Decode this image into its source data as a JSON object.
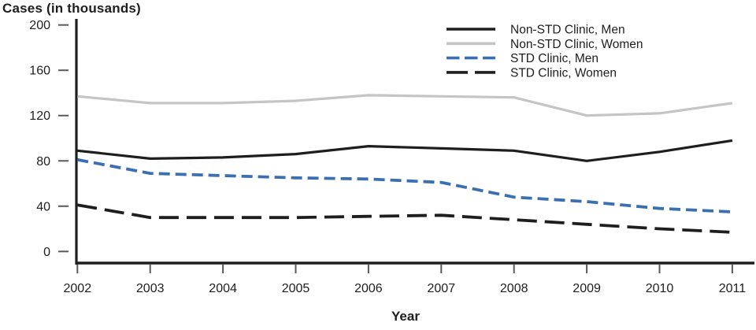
{
  "chart_data": {
    "type": "line",
    "title": "Cases (in thousands)",
    "xlabel": "Year",
    "ylabel": "",
    "x": [
      2002,
      2003,
      2004,
      2005,
      2006,
      2007,
      2008,
      2009,
      2010,
      2011
    ],
    "series": [
      {
        "name": "Non-STD Clinic, Men",
        "color": "#1e1e1e",
        "dash": "solid",
        "values": [
          89,
          82,
          83,
          86,
          93,
          91,
          89,
          80,
          88,
          98
        ]
      },
      {
        "name": "Non-STD Clinic, Women",
        "color": "#c5c5c5",
        "dash": "solid",
        "values": [
          137,
          131,
          131,
          133,
          138,
          137,
          136,
          120,
          122,
          131
        ]
      },
      {
        "name": "STD Clinic, Men",
        "color": "#3a6fb2",
        "dash": "dashed",
        "values": [
          81,
          69,
          67,
          65,
          64,
          61,
          48,
          44,
          38,
          35
        ]
      },
      {
        "name": "STD Clinic, Women",
        "color": "#1e1e1e",
        "dash": "long-dashed",
        "values": [
          41,
          30,
          30,
          30,
          31,
          32,
          28,
          24,
          20,
          17
        ]
      }
    ],
    "ylim": [
      0,
      200
    ],
    "yticks": [
      0,
      40,
      80,
      120,
      160,
      200
    ],
    "grid": false,
    "legend_position": "top-right",
    "axis_color": "#1e1e1e",
    "tick_color": "#5a5a5a"
  }
}
